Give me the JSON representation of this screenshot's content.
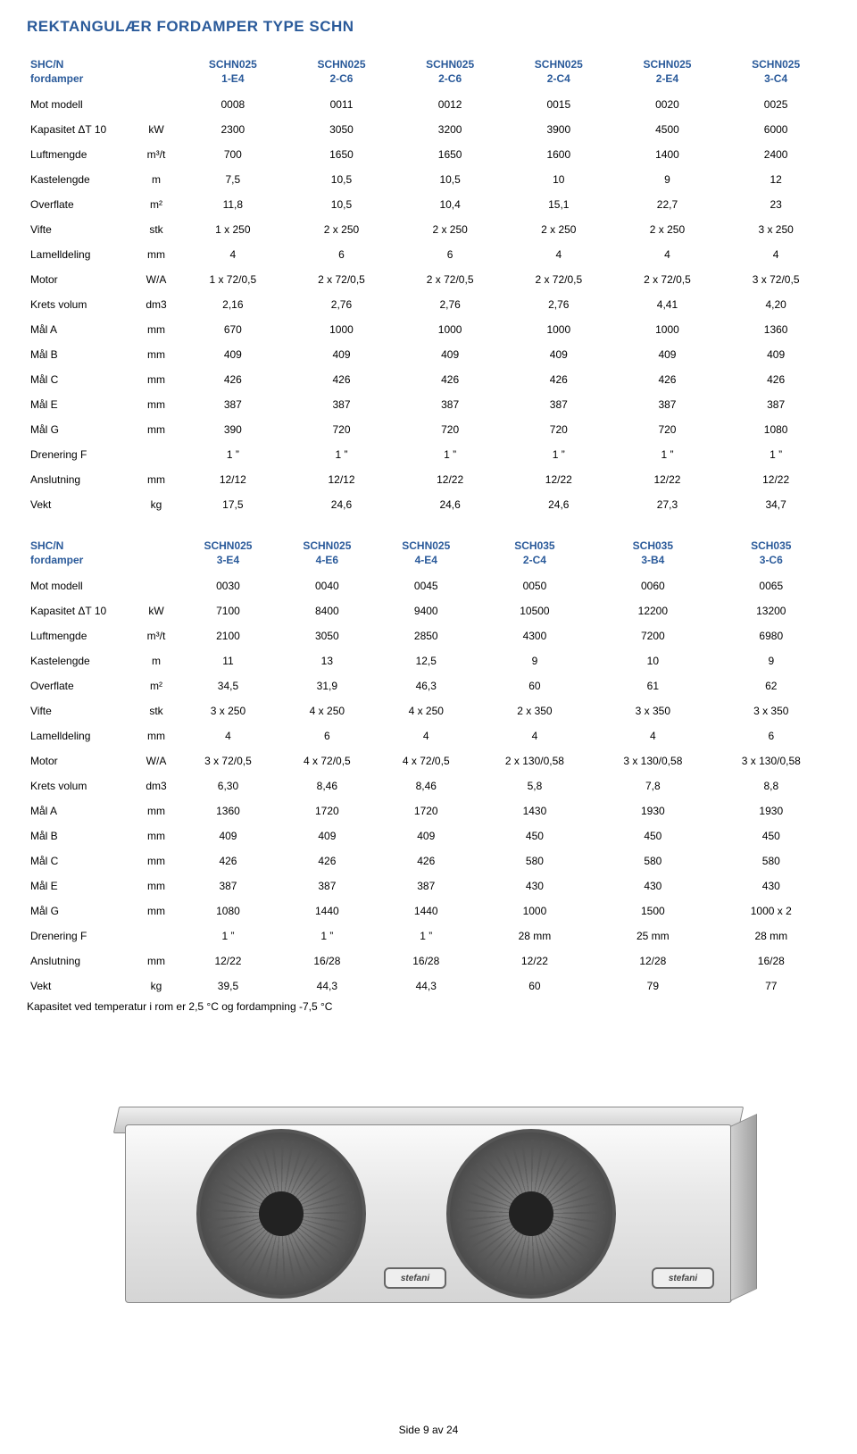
{
  "page_title": "REKTANGULÆR FORDAMPER TYPE SCHN",
  "colors": {
    "accent": "#2a5a9a",
    "text": "#000000",
    "bg": "#ffffff"
  },
  "tables": [
    {
      "header_left_1": "SHC/N",
      "header_left_2": "fordamper",
      "col_models_line1": [
        "SCHN025",
        "SCHN025",
        "SCHN025",
        "SCHN025",
        "SCHN025",
        "SCHN025"
      ],
      "col_models_line2": [
        "1-E4",
        "2-C6",
        "2-C6",
        "2-C4",
        "2-E4",
        "3-C4"
      ],
      "rows": [
        {
          "label": "Mot modell",
          "unit": "",
          "vals": [
            "0008",
            "0011",
            "0012",
            "0015",
            "0020",
            "0025"
          ]
        },
        {
          "label": "Kapasitet ΔT 10",
          "unit": "kW",
          "vals": [
            "2300",
            "3050",
            "3200",
            "3900",
            "4500",
            "6000"
          ]
        },
        {
          "label": "Luftmengde",
          "unit": "m³/t",
          "vals": [
            "700",
            "1650",
            "1650",
            "1600",
            "1400",
            "2400"
          ]
        },
        {
          "label": "Kastelengde",
          "unit": "m",
          "vals": [
            "7,5",
            "10,5",
            "10,5",
            "10",
            "9",
            "12"
          ]
        },
        {
          "label": "Overflate",
          "unit": "m²",
          "vals": [
            "11,8",
            "10,5",
            "10,4",
            "15,1",
            "22,7",
            "23"
          ]
        },
        {
          "label": "Vifte",
          "unit": "stk",
          "vals": [
            "1 x 250",
            "2 x 250",
            "2 x 250",
            "2 x 250",
            "2 x 250",
            "3 x 250"
          ]
        },
        {
          "label": "Lamelldeling",
          "unit": "mm",
          "vals": [
            "4",
            "6",
            "6",
            "4",
            "4",
            "4"
          ]
        },
        {
          "label": "Motor",
          "unit": "W/A",
          "vals": [
            "1 x 72/0,5",
            "2 x 72/0,5",
            "2 x 72/0,5",
            "2 x 72/0,5",
            "2 x 72/0,5",
            "3 x 72/0,5"
          ]
        },
        {
          "label": "Krets volum",
          "unit": "dm3",
          "vals": [
            "2,16",
            "2,76",
            "2,76",
            "2,76",
            "4,41",
            "4,20"
          ]
        },
        {
          "label": "Mål A",
          "unit": "mm",
          "vals": [
            "670",
            "1000",
            "1000",
            "1000",
            "1000",
            "1360"
          ]
        },
        {
          "label": "Mål B",
          "unit": "mm",
          "vals": [
            "409",
            "409",
            "409",
            "409",
            "409",
            "409"
          ]
        },
        {
          "label": "Mål C",
          "unit": "mm",
          "vals": [
            "426",
            "426",
            "426",
            "426",
            "426",
            "426"
          ]
        },
        {
          "label": "Mål E",
          "unit": "mm",
          "vals": [
            "387",
            "387",
            "387",
            "387",
            "387",
            "387"
          ]
        },
        {
          "label": "Mål G",
          "unit": "mm",
          "vals": [
            "390",
            "720",
            "720",
            "720",
            "720",
            "1080"
          ]
        },
        {
          "label": "Drenering F",
          "unit": "",
          "vals": [
            "1 ”",
            "1 ”",
            "1 ”",
            "1 ”",
            "1 ”",
            "1 ”"
          ]
        },
        {
          "label": "Anslutning",
          "unit": "mm",
          "vals": [
            "12/12",
            "12/12",
            "12/22",
            "12/22",
            "12/22",
            "12/22"
          ]
        },
        {
          "label": "Vekt",
          "unit": "kg",
          "vals": [
            "17,5",
            "24,6",
            "24,6",
            "24,6",
            "27,3",
            "34,7"
          ]
        }
      ]
    },
    {
      "header_left_1": "SHC/N",
      "header_left_2": "fordamper",
      "col_models_line1": [
        "SCHN025",
        "SCHN025",
        "SCHN025",
        "SCH035",
        "SCH035",
        "SCH035"
      ],
      "col_models_line2": [
        "3-E4",
        "4-E6",
        "4-E4",
        "2-C4",
        "3-B4",
        "3-C6"
      ],
      "rows": [
        {
          "label": "Mot modell",
          "unit": "",
          "vals": [
            "0030",
            "0040",
            "0045",
            "0050",
            "0060",
            "0065"
          ]
        },
        {
          "label": "Kapasitet ΔT 10",
          "unit": "kW",
          "vals": [
            "7100",
            "8400",
            "9400",
            "10500",
            "12200",
            "13200"
          ]
        },
        {
          "label": "Luftmengde",
          "unit": "m³/t",
          "vals": [
            "2100",
            "3050",
            "2850",
            "4300",
            "7200",
            "6980"
          ]
        },
        {
          "label": "Kastelengde",
          "unit": "m",
          "vals": [
            "11",
            "13",
            "12,5",
            "9",
            "10",
            "9"
          ]
        },
        {
          "label": "Overflate",
          "unit": "m²",
          "vals": [
            "34,5",
            "31,9",
            "46,3",
            "60",
            "61",
            "62"
          ]
        },
        {
          "label": "Vifte",
          "unit": "stk",
          "vals": [
            "3 x 250",
            "4 x 250",
            "4 x 250",
            "2 x 350",
            "3 x 350",
            "3 x 350"
          ]
        },
        {
          "label": "Lamelldeling",
          "unit": "mm",
          "vals": [
            "4",
            "6",
            "4",
            "4",
            "4",
            "6"
          ]
        },
        {
          "label": "Motor",
          "unit": "W/A",
          "vals": [
            "3 x 72/0,5",
            "4 x 72/0,5",
            "4 x 72/0,5",
            "2 x 130/0,58",
            "3 x 130/0,58",
            "3 x 130/0,58"
          ]
        },
        {
          "label": "Krets volum",
          "unit": "dm3",
          "vals": [
            "6,30",
            "8,46",
            "8,46",
            "5,8",
            "7,8",
            "8,8"
          ]
        },
        {
          "label": "Mål A",
          "unit": "mm",
          "vals": [
            "1360",
            "1720",
            "1720",
            "1430",
            "1930",
            "1930"
          ]
        },
        {
          "label": "Mål B",
          "unit": "mm",
          "vals": [
            "409",
            "409",
            "409",
            "450",
            "450",
            "450"
          ]
        },
        {
          "label": "Mål C",
          "unit": "mm",
          "vals": [
            "426",
            "426",
            "426",
            "580",
            "580",
            "580"
          ]
        },
        {
          "label": "Mål E",
          "unit": "mm",
          "vals": [
            "387",
            "387",
            "387",
            "430",
            "430",
            "430"
          ]
        },
        {
          "label": "Mål G",
          "unit": "mm",
          "vals": [
            "1080",
            "1440",
            "1440",
            "1000",
            "1500",
            "1000 x 2"
          ]
        },
        {
          "label": "Drenering F",
          "unit": "",
          "vals": [
            "1 ”",
            "1 ”",
            "1 ”",
            "28 mm",
            "25 mm",
            "28 mm"
          ]
        },
        {
          "label": "Anslutning",
          "unit": "mm",
          "vals": [
            "12/22",
            "16/28",
            "16/28",
            "12/22",
            "12/28",
            "16/28"
          ]
        },
        {
          "label": "Vekt",
          "unit": "kg",
          "vals": [
            "39,5",
            "44,3",
            "44,3",
            "60",
            "79",
            "77"
          ]
        }
      ]
    }
  ],
  "footnote": "Kapasitet ved temperatur i rom er 2,5 °C og fordampning -7,5 °C",
  "brand_badge": "stefani",
  "page_number": "Side 9 av 24"
}
